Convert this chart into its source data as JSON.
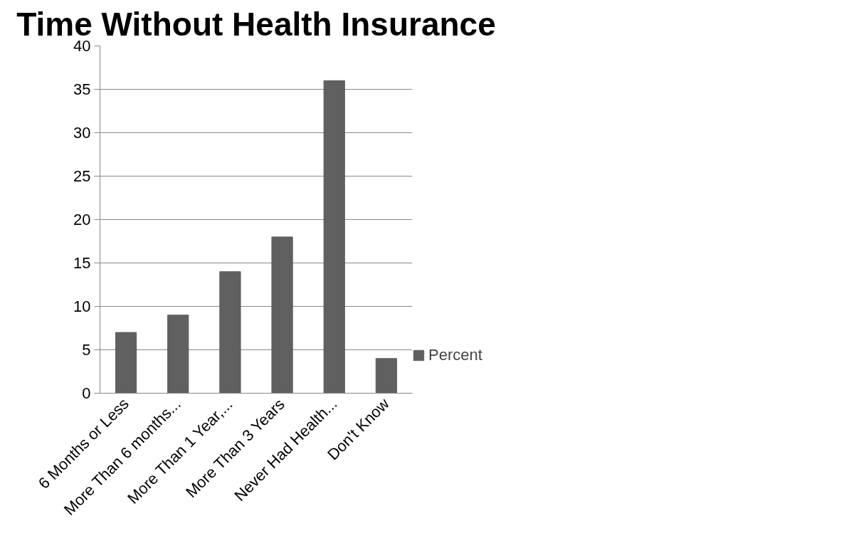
{
  "chart_data": {
    "type": "bar",
    "title": "Time Without Health Insurance",
    "categories": [
      "6 Months or Less",
      "More Than 6 months...",
      "More Than 1 Year,...",
      "More Than 3 Years",
      "Never Had Health...",
      "Don't Know"
    ],
    "series": [
      {
        "name": "Percent",
        "color": "#606060",
        "values": [
          7,
          9,
          14,
          18,
          36,
          4
        ]
      }
    ],
    "ylim": [
      0,
      40
    ],
    "yticks": [
      0,
      5,
      10,
      15,
      20,
      25,
      30,
      35,
      40
    ],
    "grid": "y",
    "legend": "right"
  }
}
